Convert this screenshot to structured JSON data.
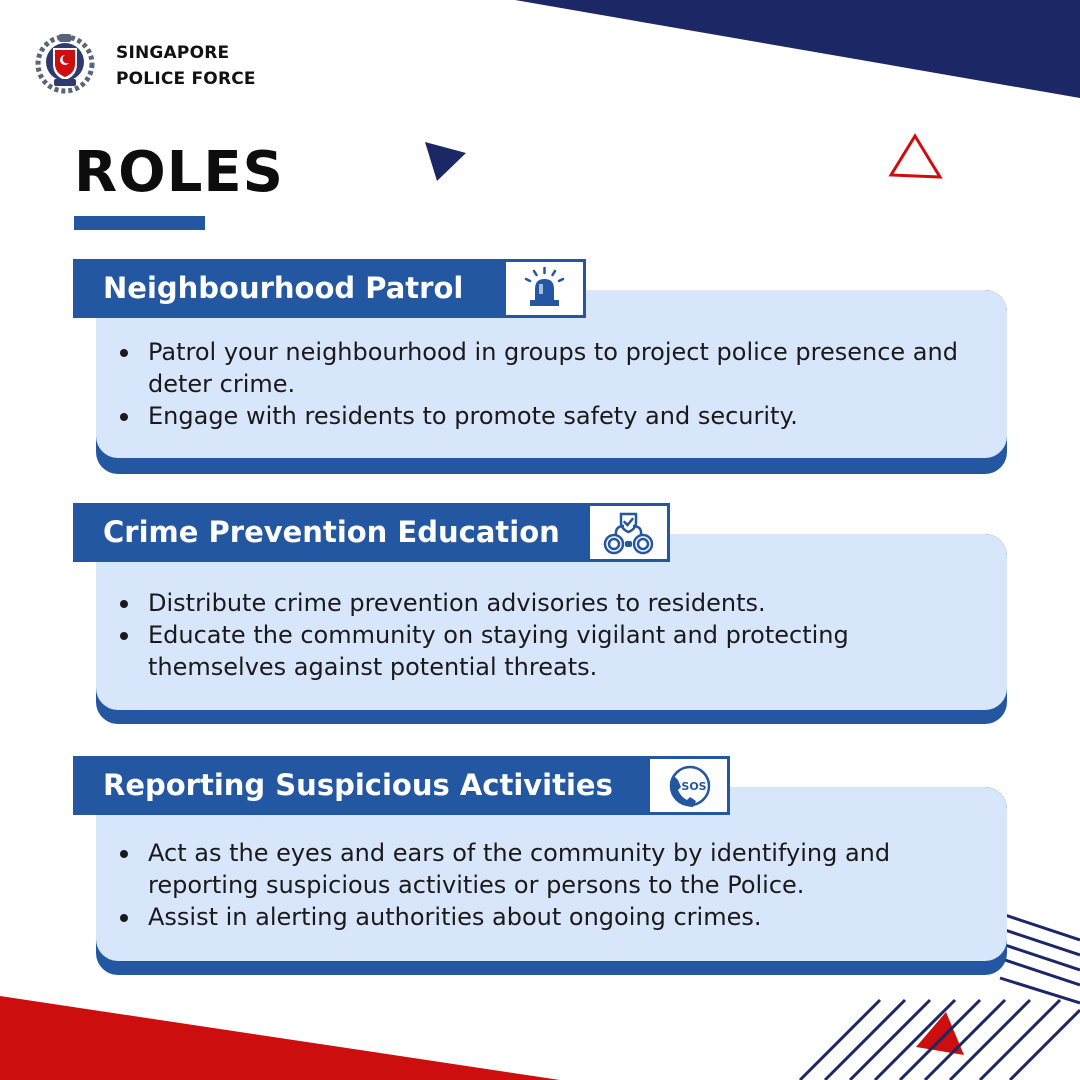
{
  "organization": {
    "name_line1": "SINGAPORE",
    "name_line2": "POLICE FORCE",
    "logo_icon": "police-crest-icon"
  },
  "title": "ROLES",
  "colors": {
    "navy": "#1c2766",
    "blue": "#2457a1",
    "light_blue": "#d8e6fb",
    "red": "#cc0e0e"
  },
  "roles": [
    {
      "heading": "Neighbourhood Patrol",
      "icon": "siren-icon",
      "bullets": [
        "Patrol your neighbourhood in groups to project police presence and deter crime.",
        "Engage with residents to promote safety and security."
      ]
    },
    {
      "heading": "Crime Prevention Education",
      "icon": "handcuffs-shield-icon",
      "bullets": [
        "Distribute crime prevention advisories to residents.",
        "Educate the community on staying vigilant and protecting themselves against potential threats."
      ]
    },
    {
      "heading": "Reporting Suspicious Activities",
      "icon": "sos-phone-icon",
      "icon_text": "SOS",
      "bullets": [
        "Act as the eyes and ears of the community by identifying and reporting suspicious activities or persons to the Police.",
        "Assist in alerting authorities about ongoing crimes."
      ]
    }
  ]
}
